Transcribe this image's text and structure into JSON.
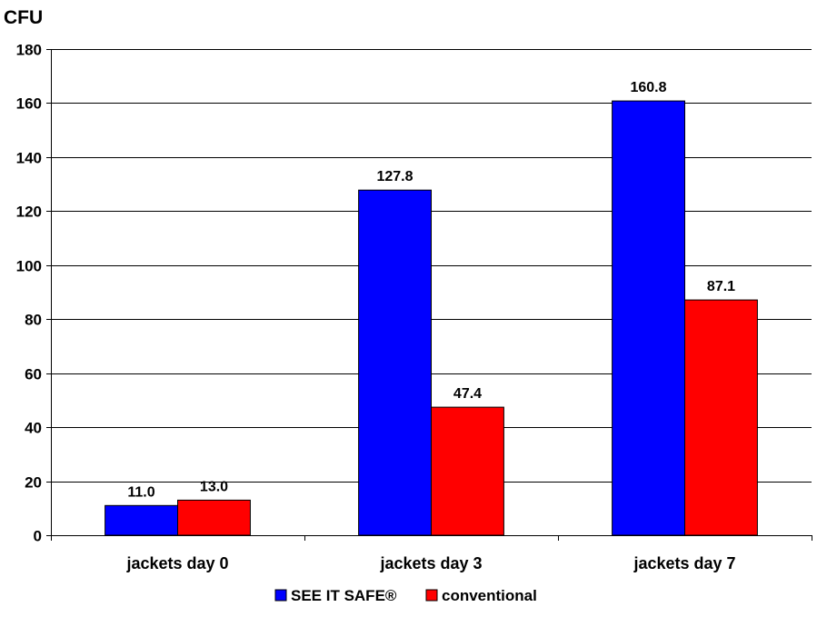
{
  "chart_data": {
    "type": "bar",
    "title": "",
    "ylabel": "CFU",
    "xlabel": "",
    "categories": [
      "jackets day 0",
      "jackets day 3",
      "jackets day 7"
    ],
    "series": [
      {
        "name": "SEE IT SAFE®",
        "color": "#0000ff",
        "values": [
          11.0,
          127.8,
          160.8
        ]
      },
      {
        "name": "conventional",
        "color": "#ff0000",
        "values": [
          13.0,
          47.4,
          87.1
        ]
      }
    ],
    "ylim": [
      0,
      180
    ],
    "yticks": [
      0,
      20,
      40,
      60,
      80,
      100,
      120,
      140,
      160,
      180
    ],
    "grid": true,
    "legend": "bottom-center",
    "data_labels": true
  }
}
